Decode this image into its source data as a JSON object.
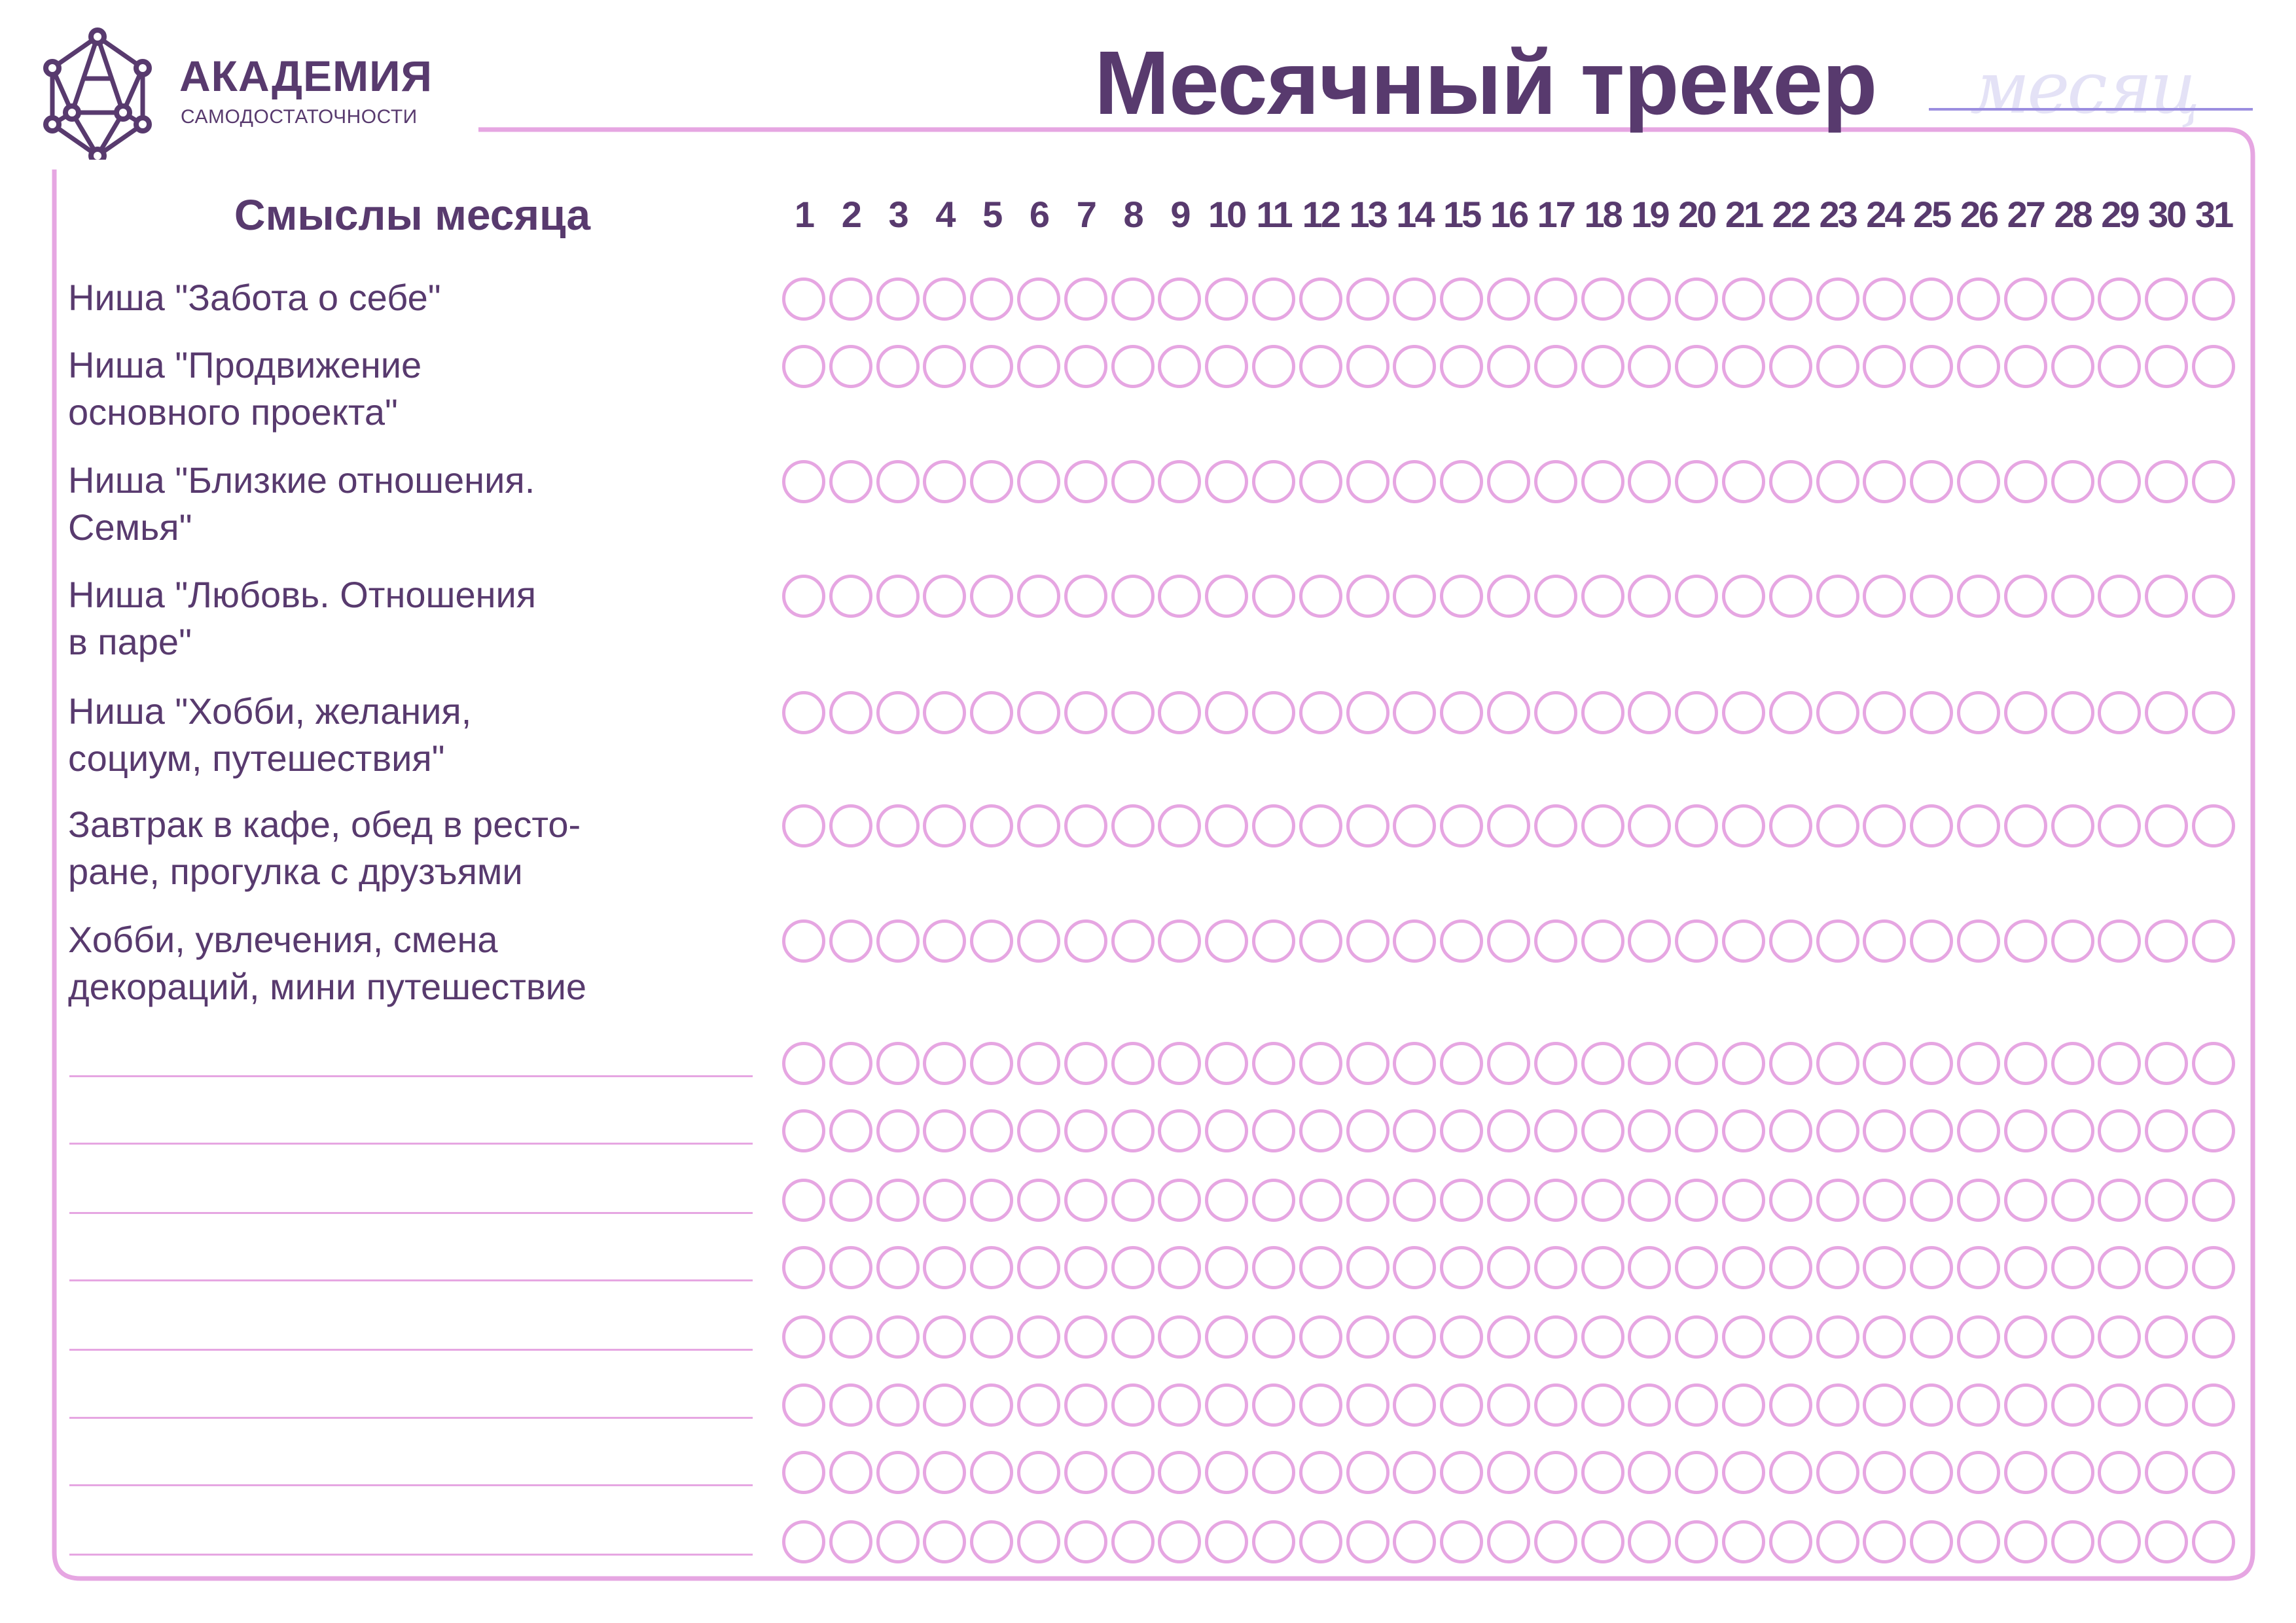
{
  "logo": {
    "title": "АКАДЕМИЯ",
    "subtitle": "САМОДОСТАТОЧНОСТИ",
    "icon": "network-hexagon-icon"
  },
  "header": {
    "title": "Месячный трекер",
    "month_placeholder": "месяц"
  },
  "table": {
    "column_header": "Смыслы месяца",
    "days": [
      "1",
      "2",
      "3",
      "4",
      "5",
      "6",
      "7",
      "8",
      "9",
      "10",
      "11",
      "12",
      "13",
      "14",
      "15",
      "16",
      "17",
      "18",
      "19",
      "20",
      "21",
      "22",
      "23",
      "24",
      "25",
      "26",
      "27",
      "28",
      "29",
      "30",
      "31"
    ],
    "rows": [
      {
        "lines": [
          "Ниша \"Забота о себе\""
        ]
      },
      {
        "lines": [
          "Ниша \"Продвижение",
          "основного проекта\""
        ]
      },
      {
        "lines": [
          "Ниша \"Близкие отношения.",
          "Семья\""
        ]
      },
      {
        "lines": [
          "Ниша \"Любовь. Отношения",
          "в паре\""
        ]
      },
      {
        "lines": [
          "Ниша \"Хобби, желания,",
          "социум, путешествия\""
        ]
      },
      {
        "lines": [
          "Завтрак в кафе, обед в ресто-",
          "ране, прогулка с друзъями"
        ]
      },
      {
        "lines": [
          "Хобби, увлечения, смена",
          "декораций, мини путешествие"
        ]
      },
      {
        "lines": []
      },
      {
        "lines": []
      },
      {
        "lines": []
      },
      {
        "lines": []
      },
      {
        "lines": []
      },
      {
        "lines": []
      },
      {
        "lines": []
      },
      {
        "lines": []
      }
    ]
  },
  "colors": {
    "primary": "#583a6e",
    "accent": "#e6a6e2",
    "month_line": "#9b8ee0"
  }
}
